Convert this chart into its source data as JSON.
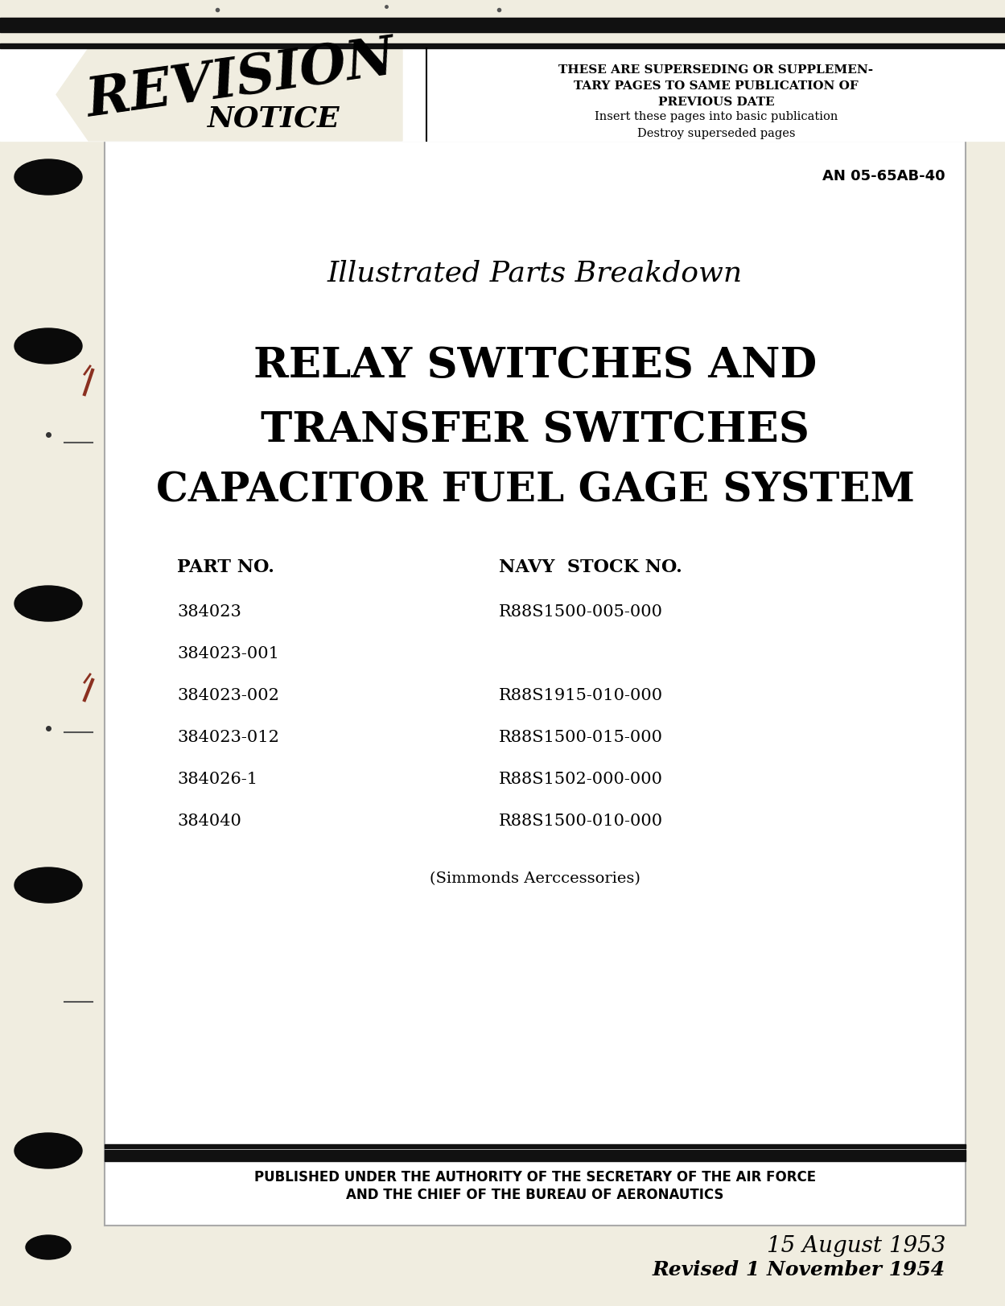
{
  "bg_color": "#f0ede0",
  "inner_bg": "#ffffff",
  "header_bar_color": "#111111",
  "revision_text": "REVISION",
  "notice_text": "NOTICE",
  "header_right_bold": "THESE ARE SUPERSEDING OR SUPPLEMEN-\nTARY PAGES TO SAME PUBLICATION OF\nPREVIOUS DATE",
  "header_right_normal": "Insert these pages into basic publication\nDestroy superseded pages",
  "an_number": "AN 05-65AB-40",
  "title_italic": "Illustrated Parts Breakdown",
  "title_main_line1": "RELAY SWITCHES AND",
  "title_main_line2": "TRANSFER SWITCHES",
  "title_main_line3": "CAPACITOR FUEL GAGE SYSTEM",
  "part_no_label": "PART NO.",
  "navy_stock_label": "NAVY  STOCK NO.",
  "parts": [
    [
      "384023",
      "R88S1500-005-000"
    ],
    [
      "384023-001",
      ""
    ],
    [
      "384023-002",
      "R88S1915-010-000"
    ],
    [
      "384023-012",
      "R88S1500-015-000"
    ],
    [
      "384026-1",
      "R88S1502-000-000"
    ],
    [
      "384040",
      "R88S1500-010-000"
    ]
  ],
  "simmonds": "(Simmonds Aerccessories)",
  "footer_line1": "PUBLISHED UNDER THE AUTHORITY OF THE SECRETARY OF THE AIR FORCE",
  "footer_line2": "AND THE CHIEF OF THE BUREAU OF AERONAUTICS",
  "date_line1": "15 August 1953",
  "date_line2": "Revised 1 November 1954"
}
